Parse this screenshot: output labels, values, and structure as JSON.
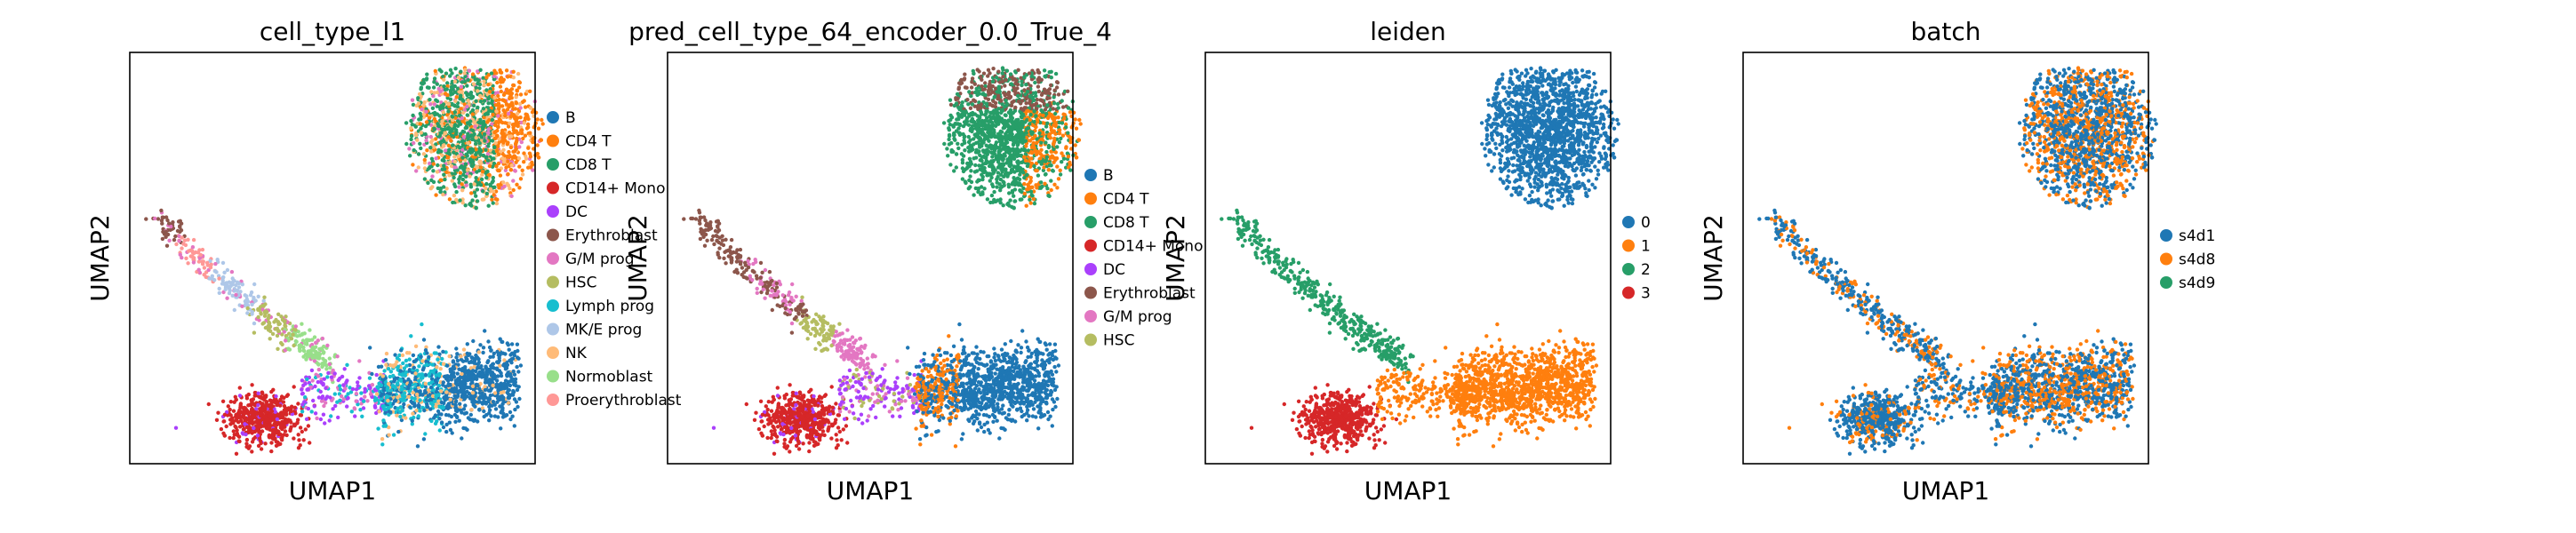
{
  "chart_data": [
    {
      "type": "scatter",
      "title": "cell_type_l1",
      "xlabel": "UMAP1",
      "ylabel": "UMAP2",
      "xticks": [],
      "yticks": [],
      "grid": false,
      "legend_position": "right-outside",
      "series": [
        {
          "name": "B",
          "color": "#1f77b4"
        },
        {
          "name": "CD4 T",
          "color": "#ff7f0e"
        },
        {
          "name": "CD8 T",
          "color": "#279e68"
        },
        {
          "name": "CD14+ Mono",
          "color": "#d62728"
        },
        {
          "name": "DC",
          "color": "#aa40fc"
        },
        {
          "name": "Erythroblast",
          "color": "#8c564b"
        },
        {
          "name": "G/M prog",
          "color": "#e377c2"
        },
        {
          "name": "HSC",
          "color": "#b5bd61"
        },
        {
          "name": "Lymph prog",
          "color": "#17becf"
        },
        {
          "name": "MK/E prog",
          "color": "#aec7e8"
        },
        {
          "name": "NK",
          "color": "#ffbb78"
        },
        {
          "name": "Normoblast",
          "color": "#98df8a"
        },
        {
          "name": "Proerythroblast",
          "color": "#ff9896"
        }
      ]
    },
    {
      "type": "scatter",
      "title": "pred_cell_type_64_encoder_0.0_True_4",
      "xlabel": "UMAP1",
      "ylabel": "UMAP2",
      "xticks": [],
      "yticks": [],
      "grid": false,
      "legend_position": "right-outside",
      "series": [
        {
          "name": "B",
          "color": "#1f77b4"
        },
        {
          "name": "CD4 T",
          "color": "#ff7f0e"
        },
        {
          "name": "CD8 T",
          "color": "#279e68"
        },
        {
          "name": "CD14+ Mono",
          "color": "#d62728"
        },
        {
          "name": "DC",
          "color": "#aa40fc"
        },
        {
          "name": "Erythroblast",
          "color": "#8c564b"
        },
        {
          "name": "G/M prog",
          "color": "#e377c2"
        },
        {
          "name": "HSC",
          "color": "#b5bd61"
        }
      ]
    },
    {
      "type": "scatter",
      "title": "leiden",
      "xlabel": "UMAP1",
      "ylabel": "UMAP2",
      "xticks": [],
      "yticks": [],
      "grid": false,
      "legend_position": "right-outside",
      "series": [
        {
          "name": "0",
          "color": "#1f77b4"
        },
        {
          "name": "1",
          "color": "#ff7f0e"
        },
        {
          "name": "2",
          "color": "#279e68"
        },
        {
          "name": "3",
          "color": "#d62728"
        }
      ]
    },
    {
      "type": "scatter",
      "title": "batch",
      "xlabel": "UMAP1",
      "ylabel": "UMAP2",
      "xticks": [],
      "yticks": [],
      "grid": false,
      "legend_position": "right-outside",
      "series": [
        {
          "name": "s4d1",
          "color": "#1f77b4"
        },
        {
          "name": "s4d8",
          "color": "#ff7f0e"
        },
        {
          "name": "s4d9",
          "color": "#279e68"
        }
      ]
    }
  ]
}
